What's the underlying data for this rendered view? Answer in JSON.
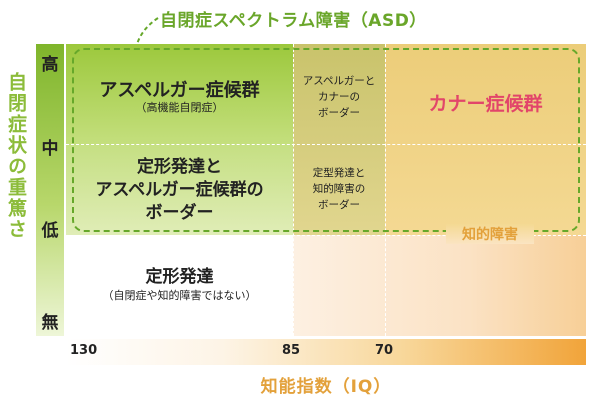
{
  "title": "自閉症スペクトラム障害（ASD）",
  "y_axis": {
    "label": "自閉症状の重篤さ",
    "ticks": [
      "高",
      "中",
      "低",
      "無"
    ]
  },
  "x_axis": {
    "label": "知能指数（IQ）",
    "ticks": [
      "130",
      "85",
      "70"
    ]
  },
  "regions": {
    "asperger": {
      "label": "アスペルガー症候群",
      "sub": "（高機能自閉症）"
    },
    "border_typical_asperger": {
      "line1": "定形発達と",
      "line2": "アスペルガー症候群の",
      "line3": "ボーダー"
    },
    "border_asperger_kanner": {
      "line1": "アスペルガーと",
      "line2": "カナーの",
      "line3": "ボーダー"
    },
    "border_typical_id": {
      "line1": "定型発達と",
      "line2": "知的障害の",
      "line3": "ボーダー"
    },
    "kanner": {
      "label": "カナー症候群"
    },
    "typical": {
      "label": "定形発達",
      "sub": "（自閉症や知的障害ではない）"
    },
    "intellectual_disability": {
      "label": "知的障害"
    }
  },
  "colors": {
    "asd_outline": "#66a82a",
    "y_label": "#8cbc3a",
    "kanner_text": "#e2456a",
    "x_label": "#e3a13b"
  }
}
